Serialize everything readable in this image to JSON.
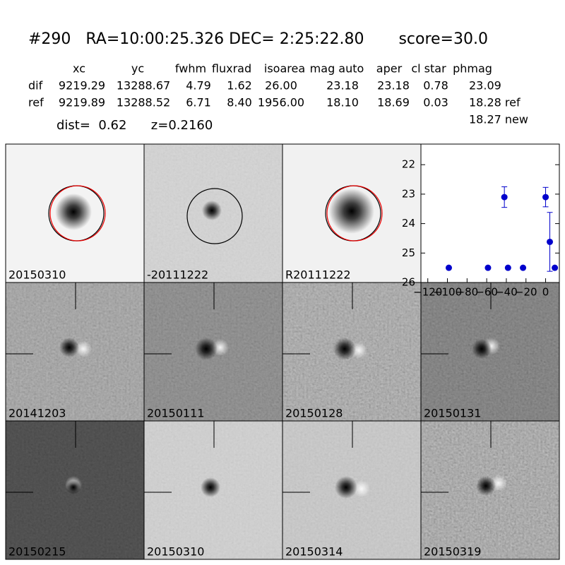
{
  "header": {
    "title": "#290   RA=10:00:25.326 DEC= 2:25:22.80       score=30.0"
  },
  "table": {
    "columns": [
      "xc",
      "yc",
      "fwhm",
      "fluxrad",
      "isoarea",
      "mag auto",
      "aper",
      "cl star",
      "phmag"
    ],
    "rows": [
      [
        "dif",
        "9219.29",
        "13288.67",
        "4.79",
        "1.62",
        "26.00",
        "23.18",
        "23.18",
        "0.78",
        "23.09"
      ],
      [
        "ref",
        "9219.89",
        "13288.52",
        "6.71",
        "8.40",
        "1956.00",
        "18.10",
        "18.69",
        "0.03",
        "18.28 ref"
      ]
    ],
    "extra": "18.27 new",
    "dist": "dist=  0.62      z=0.2160"
  },
  "panels": [
    {
      "label": "20150310"
    },
    {
      "label": "-20111222"
    },
    {
      "label": "R20111222"
    },
    {
      "label": "20141203"
    },
    {
      "label": "20150111"
    },
    {
      "label": "20150128"
    },
    {
      "label": "20150131"
    },
    {
      "label": "20150215"
    },
    {
      "label": "20150310",
      "color": "#ff0000"
    },
    {
      "label": "20150314"
    },
    {
      "label": "20150319"
    }
  ],
  "chart_data": {
    "type": "scatter",
    "x": [
      -98.6,
      -58.7,
      -42,
      -38.3,
      -23,
      0,
      4.3,
      9.4
    ],
    "series": [
      {
        "color": "#0000cc",
        "values": [
          25.5,
          25.5,
          23.1,
          25.5,
          25.5,
          23.1,
          24.62,
          25.5
        ],
        "errors": [
          null,
          null,
          0.35,
          null,
          null,
          0.33,
          1.0,
          null
        ]
      }
    ],
    "xlim": [
      -127,
      14
    ],
    "ylim": [
      26,
      21.3
    ],
    "xticks": [
      {
        "value": -120,
        "label": "−120"
      },
      {
        "value": -100,
        "label": "−100"
      },
      {
        "value": -80,
        "label": "−80"
      },
      {
        "value": -60,
        "label": "−60"
      },
      {
        "value": -40,
        "label": "−40"
      },
      {
        "value": -20,
        "label": "−20"
      },
      0
    ],
    "yticks": [
      22,
      23,
      24,
      25,
      26
    ]
  }
}
